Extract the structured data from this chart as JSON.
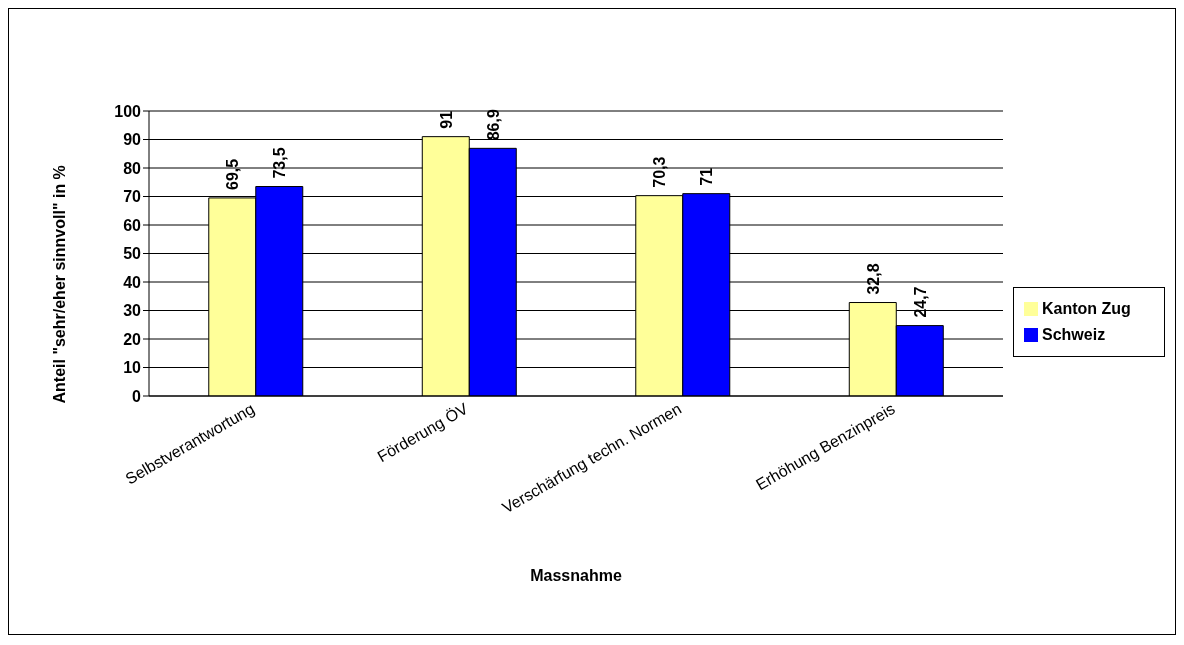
{
  "chart_data": {
    "type": "bar",
    "xlabel": "Massnahme",
    "ylabel": "Anteil \"sehr/eher sinnvoll\" in %",
    "categories": [
      "Selbstverantwortung",
      "Förderung ÖV",
      "Verschärfung techn. Normen",
      "Erhöhung Benzinpreis"
    ],
    "series": [
      {
        "name": "Kanton Zug",
        "color": "#ffff99",
        "values": [
          69.5,
          91,
          70.3,
          32.8
        ],
        "value_labels": [
          "69,5",
          "91",
          "70,3",
          "32,8"
        ]
      },
      {
        "name": "Schweiz",
        "color": "#0000ff",
        "values": [
          73.5,
          86.9,
          71,
          24.7
        ],
        "value_labels": [
          "73,5",
          "86,9",
          "71",
          "24,7"
        ]
      }
    ],
    "ylim": [
      0,
      100
    ],
    "yticks": [
      0,
      10,
      20,
      30,
      40,
      50,
      60,
      70,
      80,
      90,
      100
    ],
    "grid": "y",
    "legend": "right"
  }
}
